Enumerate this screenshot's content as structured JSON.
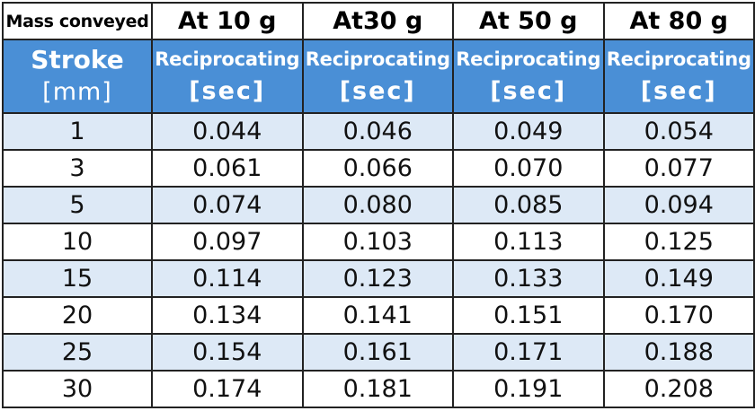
{
  "table": {
    "mass_label": "Mass conveyed",
    "masses": [
      "At 10 g",
      "At30 g",
      "At 50 g",
      "At 80 g"
    ],
    "stroke_label": "Stroke",
    "stroke_unit": "[mm]",
    "mode_label": "Reciprocating",
    "mode_unit": "[sec]",
    "header_color": "#4a8fd6",
    "stripe_color": "#dde9f6",
    "rows": [
      {
        "stroke": "1",
        "values": [
          "0.044",
          "0.046",
          "0.049",
          "0.054"
        ]
      },
      {
        "stroke": "3",
        "values": [
          "0.061",
          "0.066",
          "0.070",
          "0.077"
        ]
      },
      {
        "stroke": "5",
        "values": [
          "0.074",
          "0.080",
          "0.085",
          "0.094"
        ]
      },
      {
        "stroke": "10",
        "values": [
          "0.097",
          "0.103",
          "0.113",
          "0.125"
        ]
      },
      {
        "stroke": "15",
        "values": [
          "0.114",
          "0.123",
          "0.133",
          "0.149"
        ]
      },
      {
        "stroke": "20",
        "values": [
          "0.134",
          "0.141",
          "0.151",
          "0.170"
        ]
      },
      {
        "stroke": "25",
        "values": [
          "0.154",
          "0.161",
          "0.171",
          "0.188"
        ]
      },
      {
        "stroke": "30",
        "values": [
          "0.174",
          "0.181",
          "0.191",
          "0.208"
        ]
      }
    ]
  }
}
